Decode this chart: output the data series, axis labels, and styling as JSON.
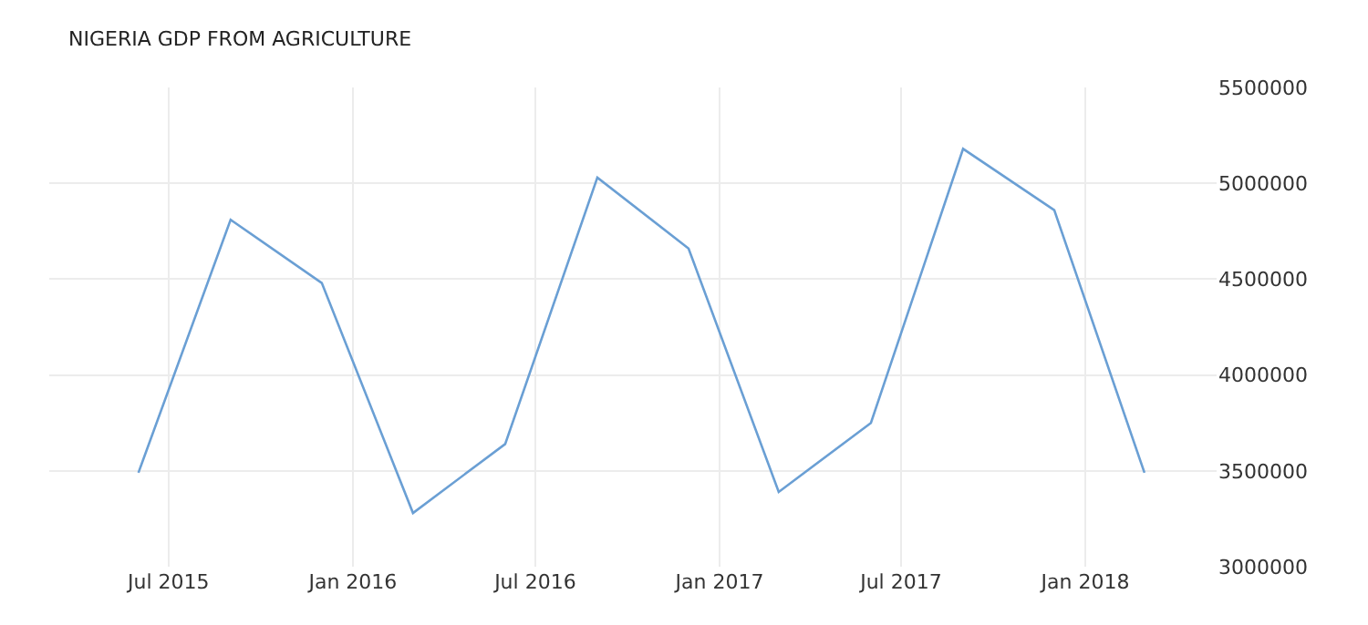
{
  "chart_data": {
    "type": "line",
    "title": "NIGERIA GDP FROM AGRICULTURE",
    "x": [
      "2015-06-01",
      "2015-09-01",
      "2015-12-01",
      "2016-03-01",
      "2016-06-01",
      "2016-09-01",
      "2016-12-01",
      "2017-03-01",
      "2017-06-01",
      "2017-09-01",
      "2017-12-01",
      "2018-03-01"
    ],
    "series": [
      {
        "color": "#6a9fd4",
        "values": [
          3490000,
          4810000,
          4480000,
          3280000,
          3640000,
          5030000,
          4660000,
          3390000,
          3750000,
          5180000,
          4860000,
          3490000
        ]
      }
    ],
    "xlim": [
      "2015-03-04",
      "2018-05-12"
    ],
    "xticks": [
      {
        "value": "2015-07-01",
        "label": "Jul 2015"
      },
      {
        "value": "2016-01-01",
        "label": "Jan 2016"
      },
      {
        "value": "2016-07-01",
        "label": "Jul 2016"
      },
      {
        "value": "2017-01-01",
        "label": "Jan 2017"
      },
      {
        "value": "2017-07-01",
        "label": "Jul 2017"
      },
      {
        "value": "2018-01-01",
        "label": "Jan 2018"
      }
    ],
    "ylim": [
      3000000,
      5500000
    ],
    "yticks": [
      3000000,
      3500000,
      4000000,
      4500000,
      5000000,
      5500000
    ],
    "grid": true,
    "marker": "none",
    "line_style": "solid"
  }
}
